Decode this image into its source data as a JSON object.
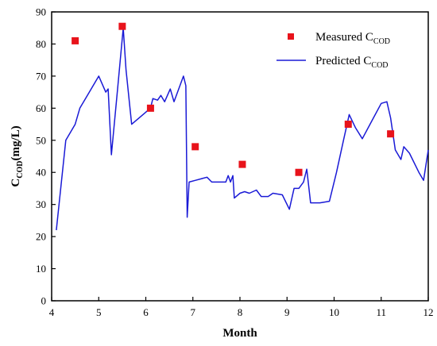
{
  "chart_data": {
    "type": "line",
    "xlabel": "Month",
    "ylabel_main": "C",
    "ylabel_sub": "COD",
    "ylabel_unit": "(mg/L)",
    "xlim": [
      4,
      12
    ],
    "ylim": [
      0,
      90
    ],
    "xticks": [
      "4",
      "5",
      "6",
      "7",
      "8",
      "9",
      "10",
      "11",
      "12"
    ],
    "yticks": [
      "0",
      "10",
      "20",
      "30",
      "40",
      "50",
      "60",
      "70",
      "80",
      "90"
    ],
    "grid": false,
    "legend_position": "top-right",
    "colors": {
      "measured": "#e8131b",
      "predicted": "#1a1ad6",
      "axis": "#000000"
    },
    "series": [
      {
        "name": "Measured C",
        "name_sub": "COD",
        "marker": "square",
        "points": [
          [
            4.5,
            81
          ],
          [
            5.5,
            85.5
          ],
          [
            6.1,
            60
          ],
          [
            7.05,
            48
          ],
          [
            8.05,
            42.5
          ],
          [
            9.25,
            40
          ],
          [
            10.3,
            55
          ],
          [
            11.2,
            52
          ]
        ]
      },
      {
        "name": "Predicted C",
        "name_sub": "COD",
        "marker": "line",
        "points": [
          [
            4.1,
            22
          ],
          [
            4.3,
            50
          ],
          [
            4.5,
            55
          ],
          [
            4.6,
            60
          ],
          [
            4.8,
            65
          ],
          [
            5.0,
            70
          ],
          [
            5.15,
            65
          ],
          [
            5.2,
            66
          ],
          [
            5.27,
            45.5
          ],
          [
            5.4,
            66
          ],
          [
            5.52,
            85
          ],
          [
            5.58,
            72
          ],
          [
            5.7,
            55
          ],
          [
            5.9,
            57.5
          ],
          [
            6.1,
            60
          ],
          [
            6.15,
            63
          ],
          [
            6.25,
            62.5
          ],
          [
            6.32,
            64
          ],
          [
            6.4,
            62
          ],
          [
            6.52,
            66
          ],
          [
            6.6,
            62
          ],
          [
            6.8,
            70
          ],
          [
            6.85,
            67
          ],
          [
            6.88,
            26
          ],
          [
            6.92,
            37
          ],
          [
            7.05,
            37.5
          ],
          [
            7.3,
            38.5
          ],
          [
            7.4,
            37
          ],
          [
            7.7,
            37
          ],
          [
            7.75,
            39
          ],
          [
            7.8,
            37
          ],
          [
            7.85,
            39
          ],
          [
            7.88,
            32
          ],
          [
            8.0,
            33.5
          ],
          [
            8.1,
            34
          ],
          [
            8.2,
            33.5
          ],
          [
            8.35,
            34.5
          ],
          [
            8.45,
            32.5
          ],
          [
            8.6,
            32.5
          ],
          [
            8.7,
            33.5
          ],
          [
            8.9,
            33
          ],
          [
            9.05,
            28.5
          ],
          [
            9.15,
            35
          ],
          [
            9.25,
            35
          ],
          [
            9.35,
            37
          ],
          [
            9.42,
            41
          ],
          [
            9.5,
            30.5
          ],
          [
            9.7,
            30.5
          ],
          [
            9.9,
            31
          ],
          [
            10.05,
            40
          ],
          [
            10.2,
            50
          ],
          [
            10.32,
            58
          ],
          [
            10.45,
            54
          ],
          [
            10.6,
            50.5
          ],
          [
            10.8,
            56
          ],
          [
            11.0,
            61.5
          ],
          [
            11.12,
            62
          ],
          [
            11.2,
            57
          ],
          [
            11.3,
            47
          ],
          [
            11.42,
            44
          ],
          [
            11.48,
            48
          ],
          [
            11.6,
            46
          ],
          [
            11.8,
            40
          ],
          [
            11.9,
            37.5
          ],
          [
            12.0,
            47
          ]
        ]
      }
    ]
  }
}
